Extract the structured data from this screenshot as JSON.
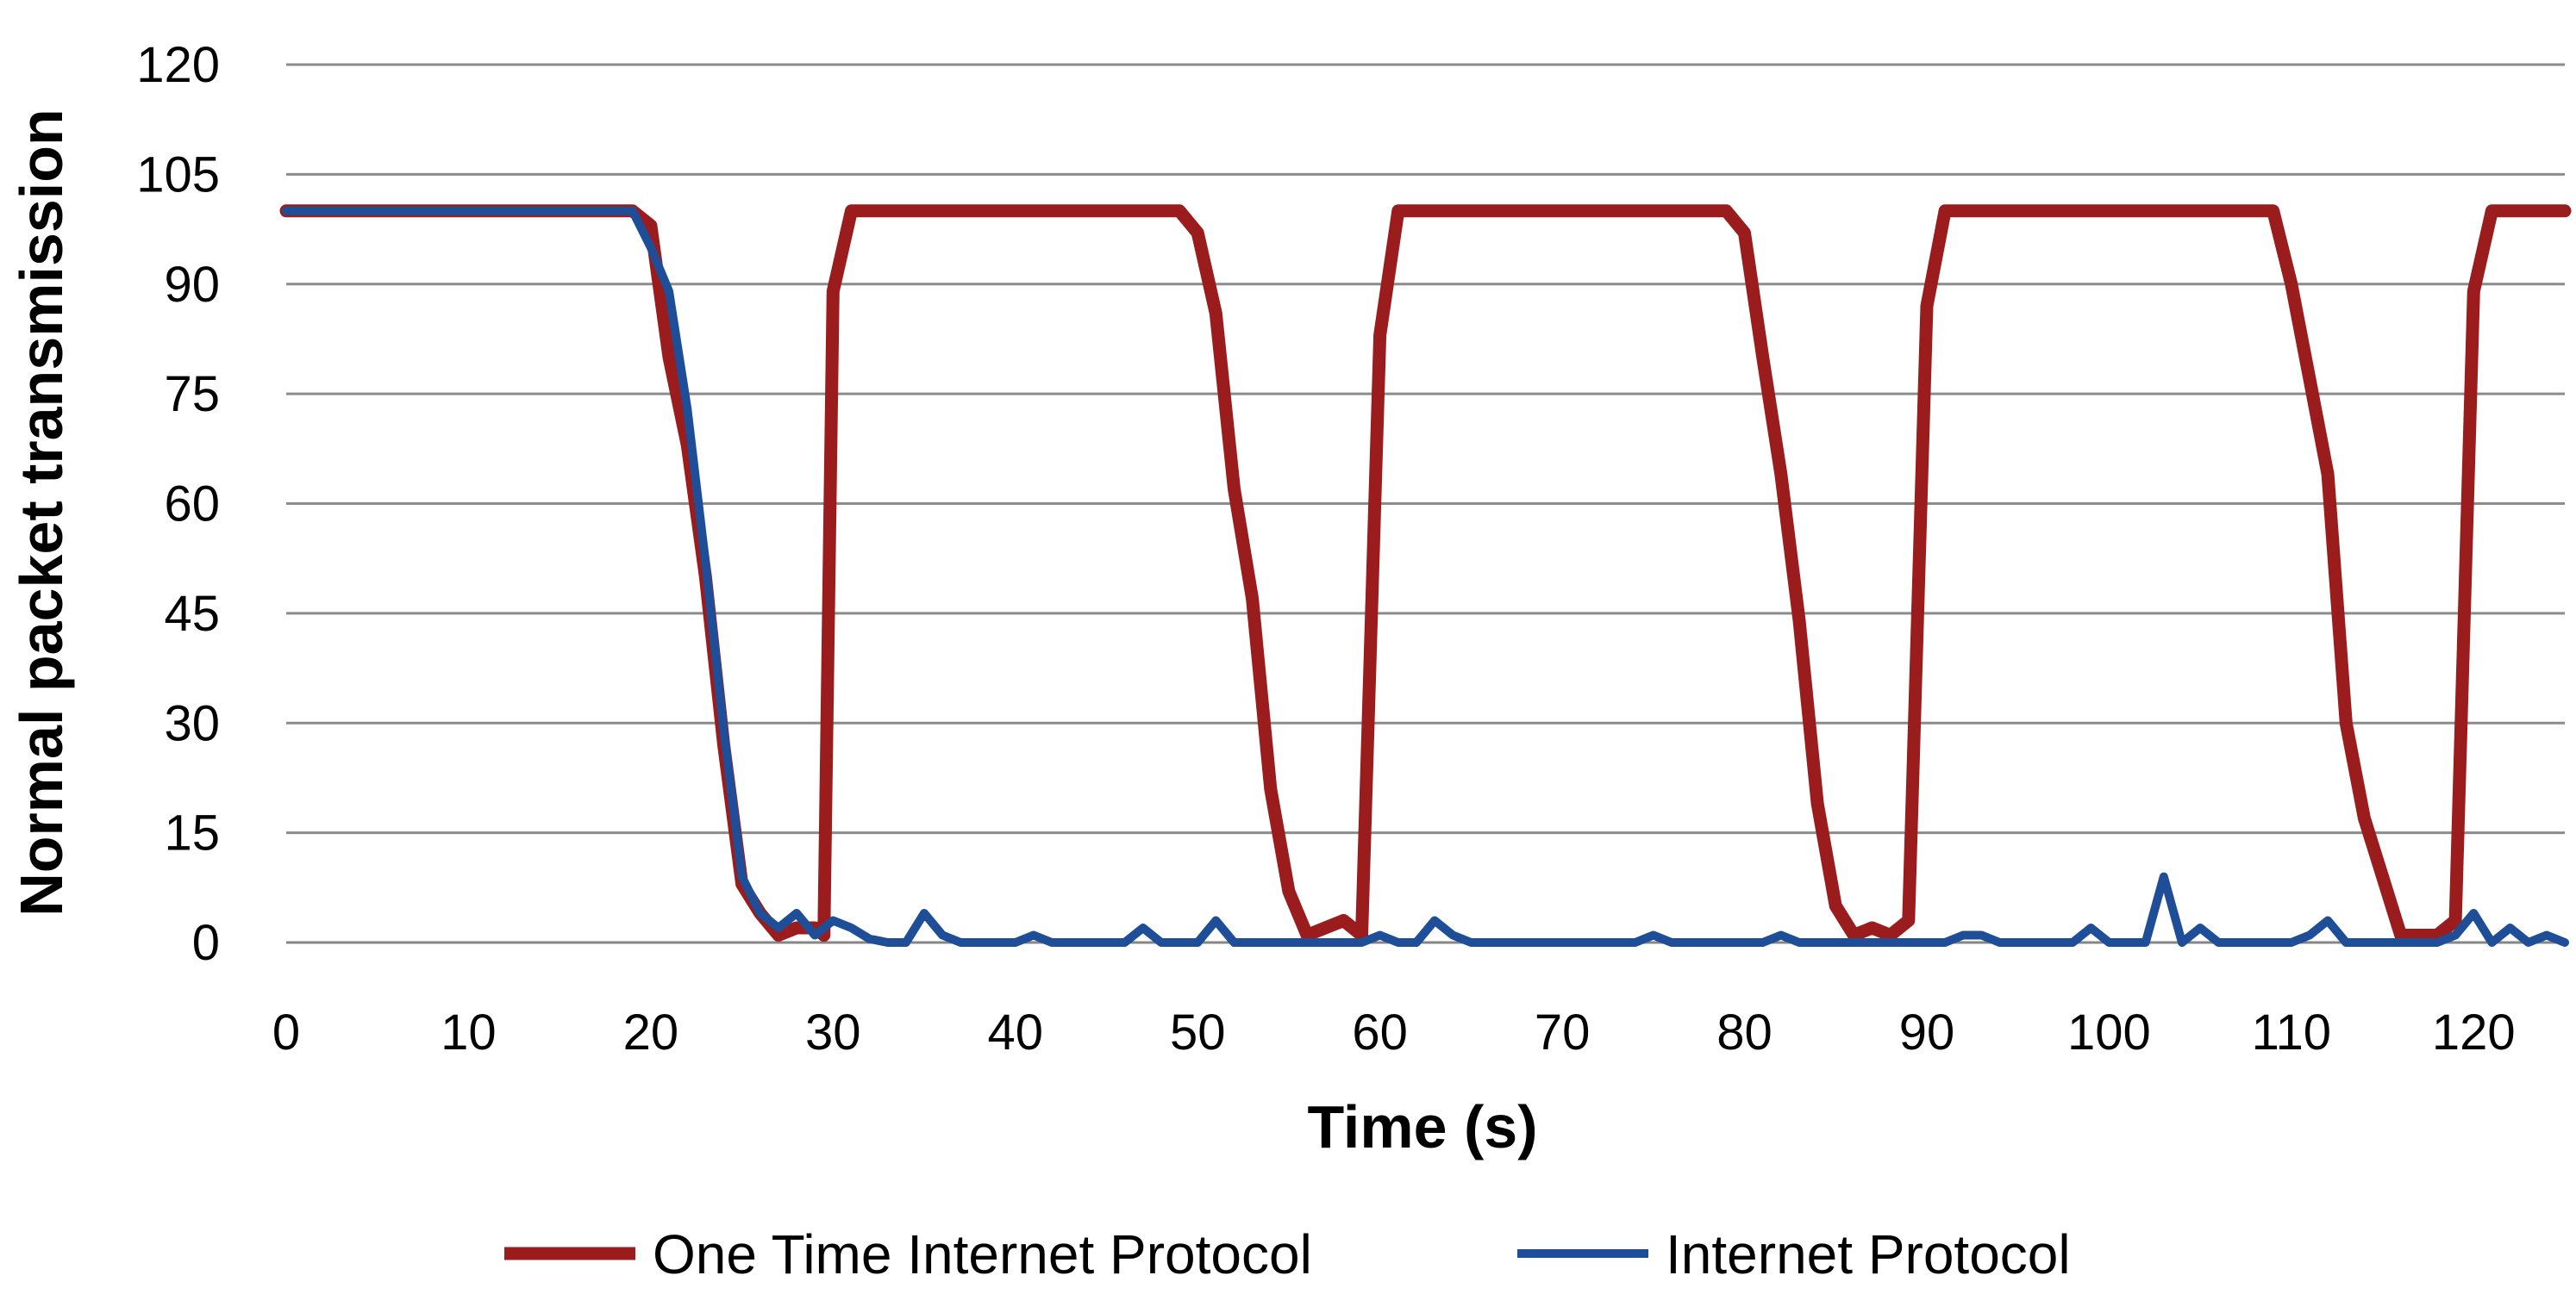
{
  "chart_data": {
    "type": "line",
    "title": "",
    "xlabel": "Time (s)",
    "ylabel": "Normal packet transmission",
    "xlim": [
      0,
      125
    ],
    "ylim": [
      0,
      120
    ],
    "xticks": [
      0,
      10,
      20,
      30,
      40,
      50,
      60,
      70,
      80,
      90,
      100,
      110,
      120
    ],
    "yticks": [
      0,
      15,
      30,
      45,
      60,
      75,
      90,
      105,
      120
    ],
    "grid": "horizontal",
    "legend_position": "bottom",
    "series": [
      {
        "name": "One Time Internet Protocol",
        "color": "#9b1c1c",
        "points": [
          [
            0,
            100
          ],
          [
            5,
            100
          ],
          [
            10,
            100
          ],
          [
            15,
            100
          ],
          [
            19,
            100
          ],
          [
            20,
            98
          ],
          [
            21,
            80
          ],
          [
            22,
            68
          ],
          [
            23,
            50
          ],
          [
            24,
            27
          ],
          [
            25,
            8
          ],
          [
            26,
            4
          ],
          [
            27,
            1
          ],
          [
            28,
            2
          ],
          [
            29,
            2
          ],
          [
            29.5,
            1
          ],
          [
            30,
            89
          ],
          [
            31,
            100
          ],
          [
            35,
            100
          ],
          [
            40,
            100
          ],
          [
            45,
            100
          ],
          [
            49,
            100
          ],
          [
            50,
            97
          ],
          [
            51,
            86
          ],
          [
            52,
            62
          ],
          [
            53,
            47
          ],
          [
            54,
            21
          ],
          [
            55,
            7
          ],
          [
            56,
            1
          ],
          [
            57,
            2
          ],
          [
            58,
            3
          ],
          [
            59,
            1
          ],
          [
            60,
            83
          ],
          [
            61,
            100
          ],
          [
            65,
            100
          ],
          [
            70,
            100
          ],
          [
            75,
            100
          ],
          [
            79,
            100
          ],
          [
            80,
            97
          ],
          [
            81,
            80
          ],
          [
            82,
            64
          ],
          [
            83,
            44
          ],
          [
            84,
            19
          ],
          [
            85,
            5
          ],
          [
            86,
            1
          ],
          [
            87,
            2
          ],
          [
            88,
            1
          ],
          [
            89,
            3
          ],
          [
            90,
            87
          ],
          [
            91,
            100
          ],
          [
            95,
            100
          ],
          [
            100,
            100
          ],
          [
            105,
            100
          ],
          [
            109,
            100
          ],
          [
            110,
            90
          ],
          [
            111,
            77
          ],
          [
            112,
            64
          ],
          [
            113,
            30
          ],
          [
            114,
            17
          ],
          [
            115,
            9
          ],
          [
            116,
            1
          ],
          [
            117,
            1
          ],
          [
            118,
            1
          ],
          [
            119,
            3
          ],
          [
            120,
            89
          ],
          [
            121,
            100
          ],
          [
            125,
            100
          ]
        ]
      },
      {
        "name": "Internet Protocol",
        "color": "#1f4e99",
        "points": [
          [
            0,
            100
          ],
          [
            5,
            100
          ],
          [
            10,
            100
          ],
          [
            15,
            100
          ],
          [
            19,
            100
          ],
          [
            20,
            95
          ],
          [
            21,
            89
          ],
          [
            22,
            73
          ],
          [
            23,
            52
          ],
          [
            24,
            29
          ],
          [
            25,
            9
          ],
          [
            26,
            4
          ],
          [
            27,
            2
          ],
          [
            28,
            4
          ],
          [
            29,
            1
          ],
          [
            30,
            3
          ],
          [
            31,
            2
          ],
          [
            32,
            0.5
          ],
          [
            33,
            0
          ],
          [
            34,
            0
          ],
          [
            35,
            4
          ],
          [
            36,
            1
          ],
          [
            37,
            0
          ],
          [
            40,
            0
          ],
          [
            41,
            1
          ],
          [
            42,
            0
          ],
          [
            46,
            0
          ],
          [
            47,
            2
          ],
          [
            48,
            0
          ],
          [
            50,
            0
          ],
          [
            51,
            3
          ],
          [
            52,
            0
          ],
          [
            59,
            0
          ],
          [
            60,
            1
          ],
          [
            61,
            0
          ],
          [
            62,
            0
          ],
          [
            63,
            3
          ],
          [
            64,
            1
          ],
          [
            65,
            0
          ],
          [
            74,
            0
          ],
          [
            75,
            1
          ],
          [
            76,
            0
          ],
          [
            81,
            0
          ],
          [
            82,
            1
          ],
          [
            83,
            0
          ],
          [
            91,
            0
          ],
          [
            92,
            1
          ],
          [
            93,
            1
          ],
          [
            94,
            0
          ],
          [
            98,
            0
          ],
          [
            99,
            2
          ],
          [
            100,
            0
          ],
          [
            102,
            0
          ],
          [
            103,
            9
          ],
          [
            104,
            0
          ],
          [
            105,
            2
          ],
          [
            106,
            0
          ],
          [
            110,
            0
          ],
          [
            111,
            1
          ],
          [
            112,
            3
          ],
          [
            113,
            0
          ],
          [
            118,
            0
          ],
          [
            119,
            1
          ],
          [
            120,
            4
          ],
          [
            121,
            0
          ],
          [
            122,
            2
          ],
          [
            123,
            0
          ],
          [
            124,
            1
          ],
          [
            125,
            0
          ]
        ]
      }
    ]
  }
}
